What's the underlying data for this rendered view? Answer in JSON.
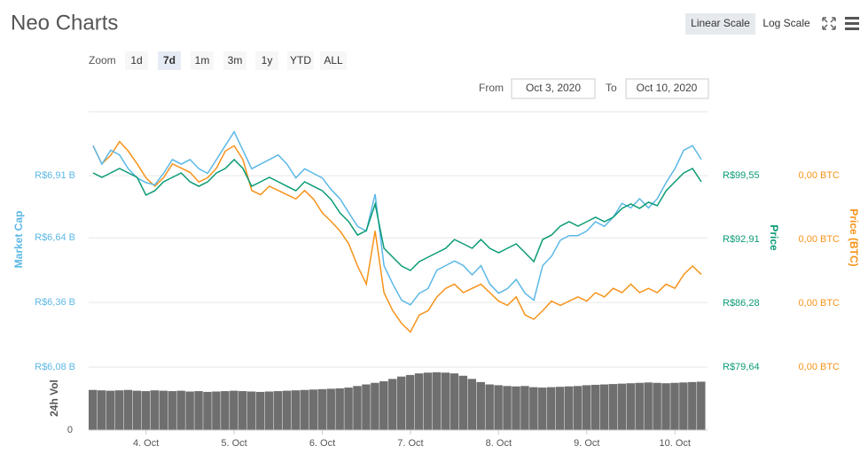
{
  "header": {
    "title": "Neo Charts",
    "scale_buttons": [
      "Linear Scale",
      "Log Scale"
    ],
    "active_scale": 0
  },
  "zoom": {
    "label": "Zoom",
    "buttons": [
      "1d",
      "7d",
      "1m",
      "3m",
      "1y",
      "YTD",
      "ALL"
    ],
    "active": 1
  },
  "range": {
    "from_label": "From",
    "from": "Oct 3, 2020",
    "to_label": "To",
    "to": "Oct 10, 2020"
  },
  "chart_data": {
    "type": "line",
    "x": [
      3.4,
      3.5,
      3.6,
      3.7,
      3.8,
      3.9,
      4.0,
      4.1,
      4.2,
      4.3,
      4.4,
      4.5,
      4.6,
      4.7,
      4.8,
      4.9,
      5.0,
      5.1,
      5.2,
      5.3,
      5.4,
      5.5,
      5.6,
      5.7,
      5.8,
      5.9,
      6.0,
      6.1,
      6.2,
      6.3,
      6.4,
      6.5,
      6.6,
      6.7,
      6.8,
      6.9,
      7.0,
      7.1,
      7.2,
      7.3,
      7.4,
      7.5,
      7.6,
      7.7,
      7.8,
      7.9,
      8.0,
      8.1,
      8.2,
      8.3,
      8.4,
      8.5,
      8.6,
      8.7,
      8.8,
      8.9,
      9.0,
      9.1,
      9.2,
      9.3,
      9.4,
      9.5,
      9.6,
      9.7,
      9.8,
      9.9,
      10.0,
      10.1,
      10.2,
      10.3
    ],
    "xlim": [
      3.35,
      10.37
    ],
    "xticks": [
      {
        "value": 4,
        "label": "4. Oct"
      },
      {
        "value": 5,
        "label": "5. Oct"
      },
      {
        "value": 6,
        "label": "6. Oct"
      },
      {
        "value": 7,
        "label": "7. Oct"
      },
      {
        "value": 8,
        "label": "8. Oct"
      },
      {
        "value": 9,
        "label": "9. Oct"
      },
      {
        "value": 10,
        "label": "10. Oct"
      }
    ],
    "ylim": [
      6.08,
      7.187
    ],
    "yticks": [
      {
        "value": 6.08,
        "label": "R$6,08 B"
      },
      {
        "value": 6.36,
        "label": "R$6,36 B"
      },
      {
        "value": 6.64,
        "label": "R$6,64 B"
      },
      {
        "value": 6.91,
        "label": "R$6,91 B"
      }
    ],
    "y2lim": [
      79.64,
      106.19
    ],
    "y2ticks": [
      {
        "value": 79.64,
        "label": "R$79,64"
      },
      {
        "value": 86.28,
        "label": "R$86,28"
      },
      {
        "value": 92.91,
        "label": "R$92,91"
      },
      {
        "value": 99.55,
        "label": "R$99,55"
      }
    ],
    "y3lim": [
      0.00149,
      0.00173
    ],
    "y3ticks": [
      {
        "value": 0.00149,
        "label": "0,00 BTC"
      },
      {
        "value": 0.00155,
        "label": "0,00 BTC"
      },
      {
        "value": 0.00161,
        "label": "0,00 BTC"
      },
      {
        "value": 0.00167,
        "label": "0,00 BTC"
      }
    ],
    "grid": true,
    "series": [
      {
        "name": "Market Cap",
        "color": "#5cb8e6",
        "axis": "y",
        "values": [
          7.04,
          6.96,
          7.02,
          7.0,
          6.94,
          6.9,
          6.88,
          6.87,
          6.92,
          6.98,
          6.96,
          6.98,
          6.94,
          6.92,
          6.98,
          7.04,
          7.1,
          7.02,
          6.94,
          6.96,
          6.98,
          7.0,
          6.96,
          6.9,
          6.94,
          6.92,
          6.9,
          6.85,
          6.81,
          6.75,
          6.69,
          6.67,
          6.83,
          6.52,
          6.44,
          6.37,
          6.35,
          6.4,
          6.42,
          6.5,
          6.52,
          6.54,
          6.52,
          6.48,
          6.52,
          6.44,
          6.4,
          6.42,
          6.46,
          6.4,
          6.37,
          6.52,
          6.56,
          6.63,
          6.65,
          6.65,
          6.67,
          6.71,
          6.69,
          6.73,
          6.79,
          6.77,
          6.81,
          6.77,
          6.81,
          6.88,
          6.94,
          7.02,
          7.04,
          6.98
        ]
      },
      {
        "name": "Price",
        "color": "#0a9b75",
        "axis": "y2",
        "values": [
          99.83,
          99.37,
          99.83,
          100.29,
          99.83,
          99.37,
          97.52,
          97.98,
          98.91,
          99.37,
          99.83,
          98.91,
          98.44,
          98.91,
          99.83,
          100.29,
          101.21,
          100.29,
          98.44,
          98.91,
          99.37,
          98.91,
          98.44,
          97.98,
          98.91,
          98.44,
          97.98,
          97.06,
          95.68,
          94.76,
          93.37,
          93.84,
          96.6,
          91.99,
          91.07,
          90.15,
          89.69,
          90.61,
          91.07,
          91.53,
          91.99,
          92.91,
          92.45,
          91.99,
          92.91,
          91.99,
          91.53,
          91.99,
          92.45,
          91.53,
          90.61,
          92.91,
          93.37,
          94.3,
          94.76,
          94.3,
          94.76,
          95.22,
          94.76,
          95.22,
          96.14,
          96.6,
          96.14,
          96.79,
          96.42,
          97.98,
          98.91,
          99.83,
          100.29,
          98.91
        ]
      },
      {
        "name": "Price (BTC)",
        "color": "#f7931a",
        "axis": "y3",
        "values": [
          0.001698,
          0.001681,
          0.001689,
          0.001702,
          0.001693,
          0.001681,
          0.001668,
          0.00166,
          0.001668,
          0.001681,
          0.001677,
          0.001673,
          0.001664,
          0.001668,
          0.001677,
          0.001693,
          0.001698,
          0.001685,
          0.001656,
          0.001652,
          0.00166,
          0.001656,
          0.001652,
          0.001648,
          0.001656,
          0.001648,
          0.001635,
          0.001627,
          0.001618,
          0.001606,
          0.001585,
          0.001568,
          0.001618,
          0.00156,
          0.001543,
          0.001531,
          0.001523,
          0.001539,
          0.001543,
          0.001556,
          0.001564,
          0.001568,
          0.00156,
          0.001564,
          0.001568,
          0.00156,
          0.001552,
          0.001548,
          0.001556,
          0.001539,
          0.001535,
          0.001543,
          0.001552,
          0.001548,
          0.001552,
          0.001556,
          0.001552,
          0.00156,
          0.001556,
          0.001564,
          0.00156,
          0.001568,
          0.00156,
          0.001564,
          0.00156,
          0.001568,
          0.001564,
          0.001577,
          0.001585,
          0.001577
        ]
      }
    ],
    "volume": {
      "name": "24h Vol",
      "color": "#6f6f6f",
      "ylim": [
        0,
        800
      ],
      "yticks": [
        0
      ],
      "values": [
        510,
        505,
        500,
        505,
        510,
        500,
        495,
        505,
        500,
        495,
        500,
        490,
        495,
        485,
        490,
        495,
        500,
        495,
        490,
        485,
        490,
        495,
        500,
        505,
        510,
        515,
        520,
        525,
        530,
        540,
        560,
        580,
        600,
        620,
        650,
        680,
        700,
        720,
        730,
        735,
        730,
        720,
        690,
        650,
        610,
        580,
        570,
        560,
        555,
        560,
        545,
        540,
        545,
        550,
        555,
        560,
        570,
        575,
        580,
        585,
        590,
        595,
        600,
        605,
        600,
        595,
        600,
        605,
        610,
        615
      ]
    }
  }
}
